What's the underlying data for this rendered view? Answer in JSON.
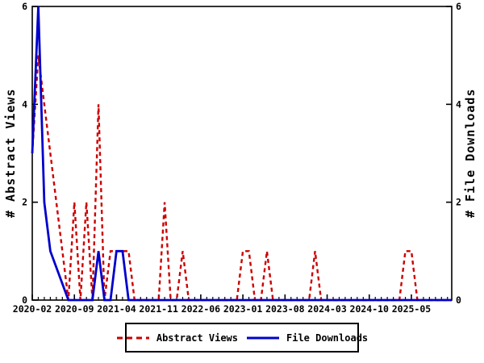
{
  "window": {
    "title": "Abstract Views and File Downloads over time"
  },
  "colors": {
    "abstract_views": "#cc0000",
    "file_downloads": "#0000cc",
    "axis": "#000000",
    "background": "#ffffff"
  },
  "chart_data": {
    "type": "line",
    "title": "",
    "x_axis": {
      "tick_labels": [
        "2020-02",
        "2020-09",
        "2021-04",
        "2021-11",
        "2022-06",
        "2023-01",
        "2023-08",
        "2024-03",
        "2024-10",
        "2025-05"
      ],
      "label_interval_months": 7,
      "minor_tick_interval_months": 1,
      "start_month": "2020-02",
      "end_month": "2025-11"
    },
    "y_axis_left": {
      "title": "# Abstract Views",
      "tick_labels": [
        "0",
        "2",
        "4",
        "6"
      ],
      "ticks": [
        0,
        2,
        4,
        6
      ],
      "range": [
        0,
        6
      ]
    },
    "y_axis_right": {
      "title": "# File Downloads",
      "tick_labels": [
        "0",
        "2",
        "4",
        "6"
      ],
      "ticks": [
        0,
        2,
        4,
        6
      ],
      "range": [
        0,
        6
      ]
    },
    "grid": false,
    "legend": {
      "position": "bottom-center",
      "entries": [
        "Abstract Views",
        "File Downloads"
      ]
    },
    "series": [
      {
        "name": "Abstract Views",
        "color": "#cc0000",
        "style": "dashed",
        "axis": "left",
        "points": [
          [
            "2020-02",
            3
          ],
          [
            "2020-03",
            5
          ],
          [
            "2020-04",
            4
          ],
          [
            "2020-08",
            0
          ],
          [
            "2020-09",
            2
          ],
          [
            "2020-10",
            0
          ],
          [
            "2020-11",
            2
          ],
          [
            "2020-12",
            0
          ],
          [
            "2021-01",
            4
          ],
          [
            "2021-02",
            0
          ],
          [
            "2021-03",
            1
          ],
          [
            "2021-06",
            1
          ],
          [
            "2021-07",
            0
          ],
          [
            "2021-11",
            0
          ],
          [
            "2021-12",
            2
          ],
          [
            "2022-01",
            0
          ],
          [
            "2022-02",
            0
          ],
          [
            "2022-03",
            1
          ],
          [
            "2022-04",
            0
          ],
          [
            "2022-12",
            0
          ],
          [
            "2023-01",
            1
          ],
          [
            "2023-02",
            1
          ],
          [
            "2023-03",
            0
          ],
          [
            "2023-04",
            0
          ],
          [
            "2023-05",
            1
          ],
          [
            "2023-06",
            0
          ],
          [
            "2023-12",
            0
          ],
          [
            "2024-01",
            1
          ],
          [
            "2024-02",
            0
          ],
          [
            "2025-03",
            0
          ],
          [
            "2025-04",
            1
          ],
          [
            "2025-05",
            1
          ],
          [
            "2025-06",
            0
          ]
        ]
      },
      {
        "name": "File Downloads",
        "color": "#0000cc",
        "style": "solid",
        "axis": "right",
        "points": [
          [
            "2020-02",
            3
          ],
          [
            "2020-03",
            6
          ],
          [
            "2020-04",
            2
          ],
          [
            "2020-05",
            1
          ],
          [
            "2020-08",
            0
          ],
          [
            "2020-12",
            0
          ],
          [
            "2021-01",
            1
          ],
          [
            "2021-02",
            0
          ],
          [
            "2021-03",
            0
          ],
          [
            "2021-04",
            1
          ],
          [
            "2021-05",
            1
          ],
          [
            "2021-06",
            0
          ]
        ]
      }
    ]
  }
}
